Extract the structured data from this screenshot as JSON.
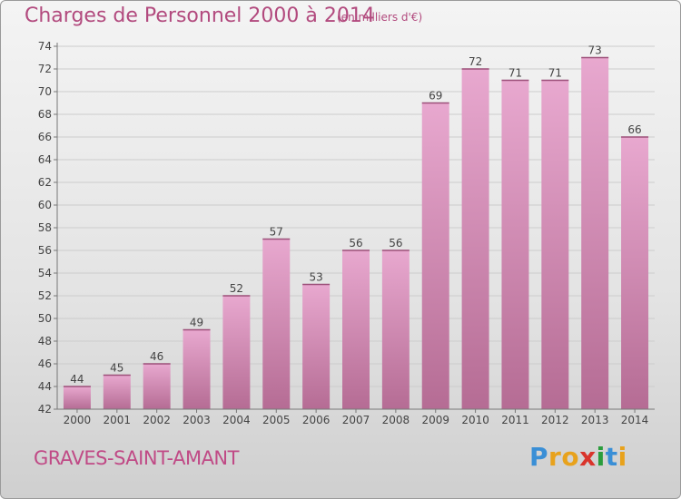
{
  "header": {
    "title": "Charges de Personnel 2000 à 2014",
    "subtitle": "(en milliers d'€)"
  },
  "footer": {
    "commune": "GRAVES-SAINT-AMANT",
    "logo_letters": [
      "P",
      "r",
      "o",
      "x",
      "i",
      "t",
      "i"
    ],
    "logo_colors": [
      "#3a8fd6",
      "#e8a21c",
      "#e8a21c",
      "#d9342b",
      "#2a9d3c",
      "#3a8fd6",
      "#e8a21c"
    ]
  },
  "colors": {
    "bar_top": "#e8a8cf",
    "bar_bottom": "#b56c94",
    "text": "#444444",
    "grid": "#cccccc"
  },
  "chart_data": {
    "type": "bar",
    "categories": [
      "2000",
      "2001",
      "2002",
      "2003",
      "2004",
      "2005",
      "2006",
      "2007",
      "2008",
      "2009",
      "2010",
      "2011",
      "2012",
      "2013",
      "2014"
    ],
    "values": [
      44,
      45,
      46,
      49,
      52,
      57,
      53,
      56,
      56,
      69,
      72,
      71,
      71,
      73,
      66
    ],
    "value_labels": [
      "44",
      "45",
      "46",
      "49",
      "52",
      "57",
      "53",
      "56",
      "56",
      "69",
      "72",
      "71",
      "71",
      "73",
      "66"
    ],
    "ylim": [
      42,
      74
    ],
    "yticks": [
      "42",
      "44",
      "46",
      "48",
      "50",
      "52",
      "54",
      "56",
      "58",
      "60",
      "62",
      "64",
      "66",
      "68",
      "70",
      "72",
      "74"
    ],
    "grid": true,
    "title": "Charges de Personnel 2000 à 2014",
    "xlabel": "",
    "ylabel": ""
  }
}
